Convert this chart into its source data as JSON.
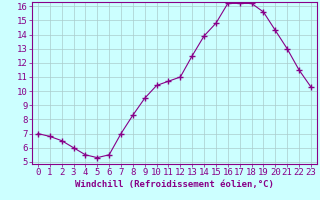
{
  "x": [
    0,
    1,
    2,
    3,
    4,
    5,
    6,
    7,
    8,
    9,
    10,
    11,
    12,
    13,
    14,
    15,
    16,
    17,
    18,
    19,
    20,
    21,
    22,
    23
  ],
  "y": [
    7.0,
    6.8,
    6.5,
    6.0,
    5.5,
    5.3,
    5.5,
    7.0,
    8.3,
    9.5,
    10.4,
    10.7,
    11.0,
    12.5,
    13.9,
    14.8,
    16.2,
    16.2,
    16.2,
    15.6,
    14.3,
    13.0,
    11.5,
    10.3
  ],
  "line_color": "#880088",
  "marker": "+",
  "marker_size": 4,
  "bg_color": "#ccffff",
  "grid_color": "#aacccc",
  "xlabel": "Windchill (Refroidissement éolien,°C)",
  "ylim": [
    5,
    16
  ],
  "xlim": [
    -0.5,
    23.5
  ],
  "yticks": [
    5,
    6,
    7,
    8,
    9,
    10,
    11,
    12,
    13,
    14,
    15,
    16
  ],
  "xticks": [
    0,
    1,
    2,
    3,
    4,
    5,
    6,
    7,
    8,
    9,
    10,
    11,
    12,
    13,
    14,
    15,
    16,
    17,
    18,
    19,
    20,
    21,
    22,
    23
  ],
  "tick_color": "#880088",
  "spine_color": "#880088",
  "label_fontsize": 6.5,
  "tick_fontsize": 6.5
}
